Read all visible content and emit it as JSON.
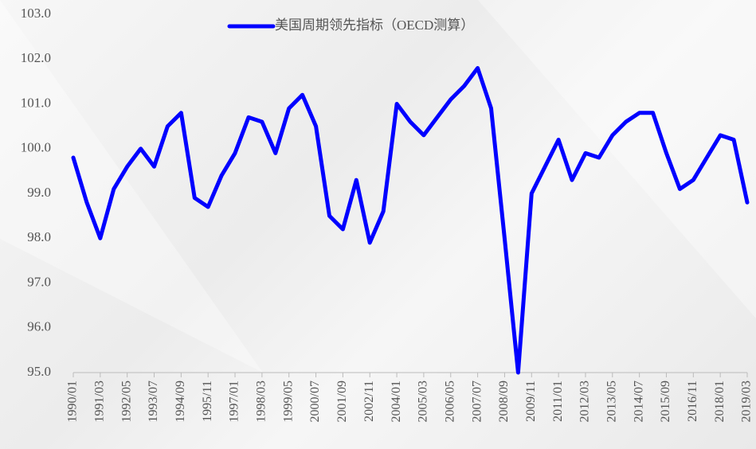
{
  "chart_data": {
    "type": "line",
    "categories": [
      "1990/01",
      null,
      "1991/03",
      null,
      "1992/05",
      null,
      "1993/07",
      null,
      "1994/09",
      null,
      "1995/11",
      null,
      "1997/01",
      null,
      "1998/03",
      null,
      "1999/05",
      null,
      "2000/07",
      null,
      "2001/09",
      null,
      "2002/11",
      null,
      "2004/01",
      null,
      "2005/03",
      null,
      "2006/05",
      null,
      "2007/07",
      null,
      "2008/09",
      null,
      "2009/11",
      null,
      "2011/01",
      null,
      "2012/03",
      null,
      "2013/05",
      null,
      "2014/07",
      null,
      "2015/09",
      null,
      "2016/11",
      null,
      "2018/01",
      null,
      "2019/03"
    ],
    "series": [
      {
        "name": "美国周期领先指标（OECD测算）",
        "color": "#0000ff",
        "values": [
          99.8,
          98.8,
          98.0,
          99.1,
          99.6,
          100.0,
          99.6,
          100.5,
          100.8,
          98.9,
          98.7,
          99.4,
          99.9,
          100.7,
          100.6,
          99.9,
          100.9,
          101.2,
          100.5,
          98.5,
          98.2,
          99.3,
          97.9,
          98.6,
          101.0,
          100.6,
          100.3,
          100.7,
          101.1,
          101.4,
          101.8,
          100.9,
          98.0,
          95.0,
          99.0,
          99.6,
          100.2,
          99.3,
          99.9,
          99.8,
          100.3,
          100.6,
          100.8,
          100.8,
          99.9,
          99.1,
          99.3,
          99.8,
          100.3,
          100.2,
          98.8
        ]
      }
    ],
    "ylim": [
      95,
      103
    ],
    "yticks": [
      {
        "value": 95,
        "label": "95.0"
      },
      {
        "value": 96,
        "label": "96.0"
      },
      {
        "value": 97,
        "label": "97.0"
      },
      {
        "value": 98,
        "label": "98.0"
      },
      {
        "value": 99,
        "label": "99.0"
      },
      {
        "value": 100,
        "label": "100.0"
      },
      {
        "value": 101,
        "label": "101.0"
      },
      {
        "value": 102,
        "label": "102.0"
      },
      {
        "value": 103,
        "label": "103.0"
      }
    ],
    "legend": "top"
  }
}
